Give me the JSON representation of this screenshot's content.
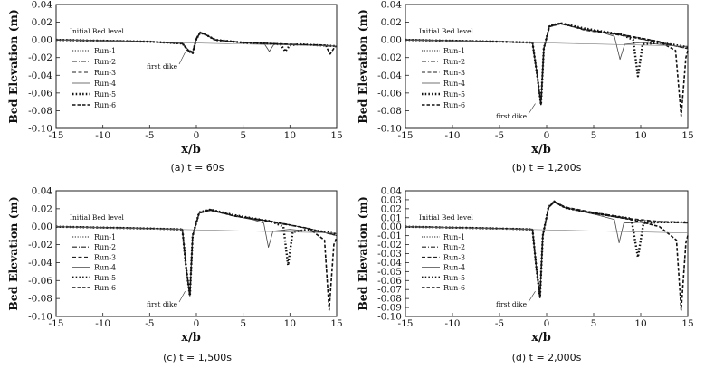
{
  "chart_data": [
    {
      "type": "line",
      "caption": "(a) t = 60s",
      "title": "",
      "xlabel": "x/b",
      "ylabel": "Bed Elevation (m)",
      "xlim": [
        -15,
        15
      ],
      "ylim": [
        -0.1,
        0.04
      ],
      "xticks": [
        -15,
        -10,
        -5,
        0,
        5,
        10,
        15
      ],
      "yticks": [
        0.04,
        0.02,
        0.0,
        -0.02,
        -0.04,
        -0.06,
        -0.08,
        -0.1
      ],
      "ytick_labels": [
        "0.04",
        "0.02",
        "0.00",
        "-0.02",
        "-0.04",
        "-0.06",
        "-0.08",
        "-0.10"
      ],
      "grid": false,
      "legend_position": "left",
      "annotations": [
        "Initial Bed level",
        "first dike"
      ],
      "series": [
        {
          "name": "Run-1",
          "style": "dotted",
          "x": [
            -15,
            -5,
            -1.5,
            -0.8,
            -0.4,
            0,
            0.4,
            1,
            2,
            5,
            10,
            15
          ],
          "y": [
            0.0,
            -0.002,
            -0.004,
            -0.012,
            -0.013,
            0.002,
            0.008,
            0.006,
            0.0,
            -0.003,
            -0.005,
            -0.007
          ]
        },
        {
          "name": "Run-2",
          "style": "dashdot",
          "x": [
            -15,
            -5,
            -1.5,
            -0.8,
            -0.4,
            0,
            0.4,
            1,
            2,
            5,
            10,
            15
          ],
          "y": [
            0.0,
            -0.002,
            -0.004,
            -0.012,
            -0.014,
            0.001,
            0.008,
            0.006,
            0.0,
            -0.003,
            -0.005,
            -0.007
          ]
        },
        {
          "name": "Run-3",
          "style": "dashed",
          "x": [
            -15,
            -5,
            -1.5,
            -0.8,
            -0.4,
            0,
            0.4,
            1,
            2,
            5,
            10,
            15
          ],
          "y": [
            0.0,
            -0.002,
            -0.004,
            -0.012,
            -0.013,
            0.002,
            0.009,
            0.006,
            0.0,
            -0.003,
            -0.005,
            -0.007
          ]
        },
        {
          "name": "Run-4",
          "style": "solid-thin",
          "x": [
            -15,
            -5,
            -1.5,
            -0.8,
            -0.4,
            0,
            0.4,
            1,
            2,
            5,
            7.3,
            7.8,
            8.3,
            10,
            15
          ],
          "y": [
            0.0,
            -0.002,
            -0.004,
            -0.012,
            -0.014,
            0.002,
            0.008,
            0.006,
            0.0,
            -0.003,
            -0.005,
            -0.013,
            -0.005,
            -0.005,
            -0.007
          ]
        },
        {
          "name": "Run-5",
          "style": "heavy-dotted",
          "x": [
            -15,
            -5,
            -1.5,
            -0.8,
            -0.4,
            0,
            0.4,
            1,
            2,
            5,
            9,
            9.5,
            10,
            11,
            15
          ],
          "y": [
            0.0,
            -0.002,
            -0.004,
            -0.013,
            -0.015,
            0.001,
            0.008,
            0.006,
            0.0,
            -0.003,
            -0.005,
            -0.013,
            -0.006,
            -0.005,
            -0.007
          ]
        },
        {
          "name": "Run-6",
          "style": "heavy-dashed",
          "x": [
            -15,
            -5,
            -1.5,
            -0.8,
            -0.4,
            0,
            0.4,
            1,
            2,
            5,
            10,
            13.8,
            14.3,
            14.8,
            15
          ],
          "y": [
            0.0,
            -0.002,
            -0.004,
            -0.013,
            -0.015,
            0.001,
            0.008,
            0.006,
            0.0,
            -0.003,
            -0.005,
            -0.006,
            -0.016,
            -0.008,
            -0.007
          ]
        },
        {
          "name": "Initial Bed level",
          "style": "baseline",
          "x": [
            -15,
            15
          ],
          "y": [
            0.0,
            -0.007
          ]
        }
      ]
    },
    {
      "type": "line",
      "caption": "(b) t = 1,200s",
      "title": "",
      "xlabel": "x/b",
      "ylabel": "Bed Elevation (m)",
      "xlim": [
        -15,
        15
      ],
      "ylim": [
        -0.1,
        0.04
      ],
      "xticks": [
        -15,
        -10,
        -5,
        0,
        5,
        10,
        15
      ],
      "yticks": [
        0.04,
        0.02,
        0.0,
        -0.02,
        -0.04,
        -0.06,
        -0.08,
        -0.1
      ],
      "ytick_labels": [
        "0.04",
        "0.02",
        "0.00",
        "-0.02",
        "-0.04",
        "-0.06",
        "-0.08",
        "-0.10"
      ],
      "grid": false,
      "legend_position": "left",
      "annotations": [
        "Initial Bed level",
        "first dike"
      ],
      "series": [
        {
          "name": "Run-1",
          "style": "dotted",
          "x": [
            -15,
            -5,
            -1.5,
            -1,
            -0.6,
            -0.3,
            0.3,
            1.5,
            4,
            8,
            12,
            15
          ],
          "y": [
            0.0,
            -0.002,
            -0.003,
            -0.04,
            -0.072,
            -0.01,
            0.015,
            0.019,
            0.012,
            0.005,
            -0.003,
            -0.01
          ]
        },
        {
          "name": "Run-2",
          "style": "dashdot",
          "x": [
            -15,
            -5,
            -1.5,
            -1,
            -0.6,
            -0.3,
            0.3,
            1.5,
            4,
            8,
            12,
            15
          ],
          "y": [
            0.0,
            -0.002,
            -0.003,
            -0.04,
            -0.073,
            -0.01,
            0.015,
            0.018,
            0.012,
            0.006,
            -0.002,
            -0.01
          ]
        },
        {
          "name": "Run-3",
          "style": "dashed",
          "x": [
            -15,
            -5,
            -1.5,
            -1,
            -0.6,
            -0.3,
            0.3,
            1.5,
            4,
            8,
            12,
            15
          ],
          "y": [
            0.0,
            -0.002,
            -0.003,
            -0.04,
            -0.072,
            -0.01,
            0.016,
            0.019,
            0.011,
            0.005,
            -0.003,
            -0.01
          ]
        },
        {
          "name": "Run-4",
          "style": "solid-thin",
          "x": [
            -15,
            -5,
            -1.5,
            -1,
            -0.6,
            -0.3,
            0.3,
            1.5,
            4,
            6,
            7.2,
            7.8,
            8.3,
            10,
            15
          ],
          "y": [
            0.0,
            -0.002,
            -0.003,
            -0.04,
            -0.072,
            -0.01,
            0.015,
            0.018,
            0.012,
            0.008,
            0.004,
            -0.022,
            -0.005,
            -0.003,
            -0.008
          ]
        },
        {
          "name": "Run-5",
          "style": "heavy-dotted",
          "x": [
            -15,
            -5,
            -1.5,
            -1,
            -0.6,
            -0.3,
            0.3,
            1.5,
            4,
            8,
            9.2,
            9.7,
            10.2,
            12,
            15
          ],
          "y": [
            0.0,
            -0.002,
            -0.003,
            -0.04,
            -0.073,
            -0.01,
            0.016,
            0.019,
            0.013,
            0.006,
            0.0,
            -0.041,
            -0.005,
            -0.003,
            -0.008
          ]
        },
        {
          "name": "Run-6",
          "style": "heavy-dashed",
          "x": [
            -15,
            -5,
            -1.5,
            -1,
            -0.6,
            -0.3,
            0.3,
            1.5,
            4,
            8,
            12,
            13.7,
            14.3,
            14.8,
            15
          ],
          "y": [
            0.0,
            -0.002,
            -0.003,
            -0.04,
            -0.073,
            -0.01,
            0.015,
            0.019,
            0.012,
            0.006,
            -0.002,
            -0.012,
            -0.086,
            -0.02,
            -0.012
          ]
        },
        {
          "name": "Initial Bed level",
          "style": "baseline",
          "x": [
            -15,
            15
          ],
          "y": [
            0.0,
            -0.007
          ]
        }
      ]
    },
    {
      "type": "line",
      "caption": "(c) t = 1,500s",
      "title": "",
      "xlabel": "x/b",
      "ylabel": "Bed Elevation (m)",
      "xlim": [
        -15,
        15
      ],
      "ylim": [
        -0.1,
        0.04
      ],
      "xticks": [
        -15,
        -10,
        -5,
        0,
        5,
        10,
        15
      ],
      "yticks": [
        0.04,
        0.02,
        0.0,
        -0.02,
        -0.04,
        -0.06,
        -0.08,
        -0.1
      ],
      "ytick_labels": [
        "0.04",
        "0.02",
        "0.00",
        "-0.02",
        "-0.04",
        "-0.06",
        "-0.08",
        "-0.10"
      ],
      "grid": false,
      "legend_position": "left",
      "annotations": [
        "Initial Bed level",
        "first dike"
      ],
      "series": [
        {
          "name": "Run-1",
          "style": "dotted",
          "x": [
            -15,
            -5,
            -1.5,
            -1.1,
            -0.7,
            -0.4,
            0.3,
            1.5,
            4,
            8,
            12,
            15
          ],
          "y": [
            0.0,
            -0.002,
            -0.003,
            -0.045,
            -0.076,
            -0.01,
            0.015,
            0.019,
            0.013,
            0.006,
            -0.002,
            -0.01
          ]
        },
        {
          "name": "Run-2",
          "style": "dashdot",
          "x": [
            -15,
            -5,
            -1.5,
            -1.1,
            -0.7,
            -0.4,
            0.3,
            1.5,
            4,
            8,
            12,
            15
          ],
          "y": [
            0.0,
            -0.002,
            -0.003,
            -0.045,
            -0.077,
            -0.01,
            0.015,
            0.018,
            0.012,
            0.005,
            -0.002,
            -0.01
          ]
        },
        {
          "name": "Run-3",
          "style": "dashed",
          "x": [
            -15,
            -5,
            -1.5,
            -1.1,
            -0.7,
            -0.4,
            0.3,
            1.5,
            4,
            8,
            12,
            15
          ],
          "y": [
            0.0,
            -0.002,
            -0.003,
            -0.045,
            -0.076,
            -0.01,
            0.016,
            0.019,
            0.012,
            0.006,
            -0.002,
            -0.01
          ]
        },
        {
          "name": "Run-4",
          "style": "solid-thin",
          "x": [
            -15,
            -5,
            -1.5,
            -1.1,
            -0.7,
            -0.4,
            0.3,
            1.5,
            4,
            6,
            7.2,
            7.7,
            8.2,
            10,
            15
          ],
          "y": [
            0.0,
            -0.002,
            -0.003,
            -0.045,
            -0.076,
            -0.01,
            0.015,
            0.018,
            0.012,
            0.008,
            0.004,
            -0.023,
            -0.005,
            -0.003,
            -0.008
          ]
        },
        {
          "name": "Run-5",
          "style": "heavy-dotted",
          "x": [
            -15,
            -5,
            -1.5,
            -1.1,
            -0.7,
            -0.4,
            0.3,
            1.5,
            4,
            8,
            9.3,
            9.8,
            10.3,
            12,
            15
          ],
          "y": [
            0.0,
            -0.002,
            -0.003,
            -0.045,
            -0.077,
            -0.01,
            0.016,
            0.019,
            0.013,
            0.006,
            0.0,
            -0.043,
            -0.006,
            -0.003,
            -0.008
          ]
        },
        {
          "name": "Run-6",
          "style": "heavy-dashed",
          "x": [
            -15,
            -5,
            -1.5,
            -1.1,
            -0.7,
            -0.4,
            0.3,
            1.5,
            4,
            8,
            12,
            13.7,
            14.2,
            14.7,
            15
          ],
          "y": [
            0.0,
            -0.002,
            -0.003,
            -0.045,
            -0.077,
            -0.01,
            0.015,
            0.019,
            0.012,
            0.006,
            -0.002,
            -0.015,
            -0.093,
            -0.02,
            -0.012
          ]
        },
        {
          "name": "Initial Bed level",
          "style": "baseline",
          "x": [
            -15,
            15
          ],
          "y": [
            0.0,
            -0.007
          ]
        }
      ]
    },
    {
      "type": "line",
      "caption": "(d) t = 2,000s",
      "title": "",
      "xlabel": "x/b",
      "ylabel": "Bed Elevation (m)",
      "xlim": [
        -15,
        15
      ],
      "ylim": [
        -0.1,
        0.04
      ],
      "xticks": [
        -15,
        -10,
        -5,
        0,
        5,
        10,
        15
      ],
      "yticks": [
        0.04,
        0.03,
        0.02,
        0.01,
        0.0,
        -0.01,
        -0.02,
        -0.03,
        -0.04,
        -0.05,
        -0.06,
        -0.07,
        -0.08,
        -0.09,
        -0.1
      ],
      "ytick_labels": [
        "0.04",
        "0.03",
        "0.02",
        "0.01",
        "0.00",
        "-0.01",
        "-0.02",
        "-0.03",
        "-0.04",
        "-0.05",
        "-0.06",
        "-0.07",
        "-0.08",
        "-0.09",
        "-0.10"
      ],
      "grid": false,
      "legend_position": "left",
      "annotations": [
        "Initial Bed level",
        "first dike"
      ],
      "series": [
        {
          "name": "Run-1",
          "style": "dotted",
          "x": [
            -15,
            -5,
            -1.5,
            -1.1,
            -0.7,
            -0.4,
            0.2,
            0.8,
            2,
            5,
            9,
            12,
            15
          ],
          "y": [
            0.0,
            -0.002,
            -0.003,
            -0.045,
            -0.078,
            -0.01,
            0.022,
            0.029,
            0.021,
            0.015,
            0.008,
            0.006,
            0.005
          ]
        },
        {
          "name": "Run-2",
          "style": "dashdot",
          "x": [
            -15,
            -5,
            -1.5,
            -1.1,
            -0.7,
            -0.4,
            0.2,
            0.8,
            2,
            5,
            9,
            12,
            15
          ],
          "y": [
            0.0,
            -0.002,
            -0.003,
            -0.045,
            -0.079,
            -0.01,
            0.021,
            0.027,
            0.021,
            0.015,
            0.008,
            0.005,
            0.004
          ]
        },
        {
          "name": "Run-3",
          "style": "dashed",
          "x": [
            -15,
            -5,
            -1.5,
            -1.1,
            -0.7,
            -0.4,
            0.2,
            0.8,
            2,
            5,
            9,
            12,
            15
          ],
          "y": [
            0.0,
            -0.002,
            -0.003,
            -0.045,
            -0.078,
            -0.01,
            0.022,
            0.028,
            0.022,
            0.016,
            0.009,
            0.006,
            0.005
          ]
        },
        {
          "name": "Run-4",
          "style": "solid-thin",
          "x": [
            -15,
            -5,
            -1.5,
            -1.1,
            -0.7,
            -0.4,
            0.2,
            0.8,
            2,
            5,
            7.2,
            7.7,
            8.2,
            10,
            15
          ],
          "y": [
            0.0,
            -0.002,
            -0.003,
            -0.045,
            -0.078,
            -0.01,
            0.021,
            0.027,
            0.021,
            0.014,
            0.008,
            -0.018,
            0.004,
            0.005,
            0.005
          ]
        },
        {
          "name": "Run-5",
          "style": "heavy-dotted",
          "x": [
            -15,
            -5,
            -1.5,
            -1.1,
            -0.7,
            -0.4,
            0.2,
            0.8,
            2,
            5,
            9,
            9.7,
            10.3,
            12,
            15
          ],
          "y": [
            0.0,
            -0.002,
            -0.003,
            -0.045,
            -0.079,
            -0.01,
            0.022,
            0.028,
            0.021,
            0.015,
            0.009,
            -0.034,
            0.004,
            0.005,
            0.005
          ]
        },
        {
          "name": "Run-6",
          "style": "heavy-dashed",
          "x": [
            -15,
            -5,
            -1.5,
            -1.1,
            -0.7,
            -0.4,
            0.2,
            0.8,
            2,
            5,
            9,
            12,
            13.8,
            14.3,
            14.8,
            15
          ],
          "y": [
            0.0,
            -0.002,
            -0.003,
            -0.045,
            -0.079,
            -0.01,
            0.021,
            0.028,
            0.021,
            0.015,
            0.008,
            0.0,
            -0.015,
            -0.093,
            -0.018,
            -0.01
          ]
        },
        {
          "name": "Initial Bed level",
          "style": "baseline",
          "x": [
            -15,
            15
          ],
          "y": [
            0.0,
            -0.007
          ]
        }
      ]
    }
  ]
}
